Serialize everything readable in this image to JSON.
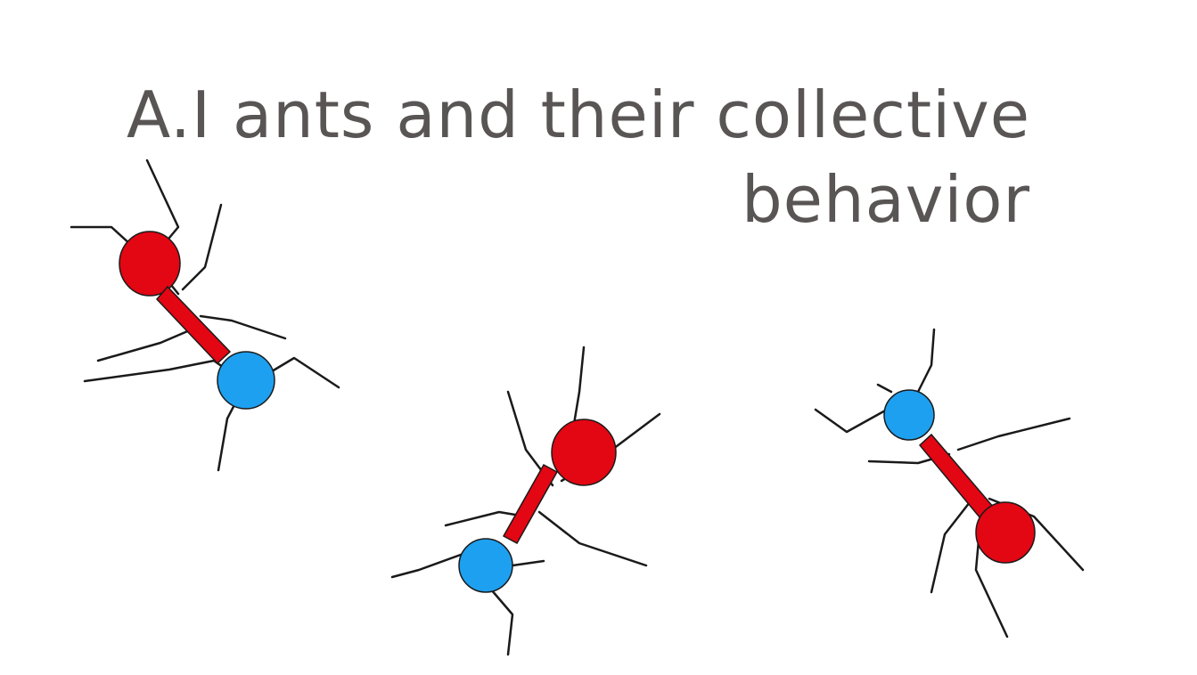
{
  "slide": {
    "title_line1": "A.I ants and their collective",
    "title_line2": "behavior"
  },
  "colors": {
    "title": "#5a5555",
    "ant_body": "#e30613",
    "ant_head": "#1ea0f0",
    "legs": "#1a1a1a"
  },
  "ants": [
    {
      "name": "ant-top-left"
    },
    {
      "name": "ant-bottom-middle"
    },
    {
      "name": "ant-right"
    }
  ]
}
